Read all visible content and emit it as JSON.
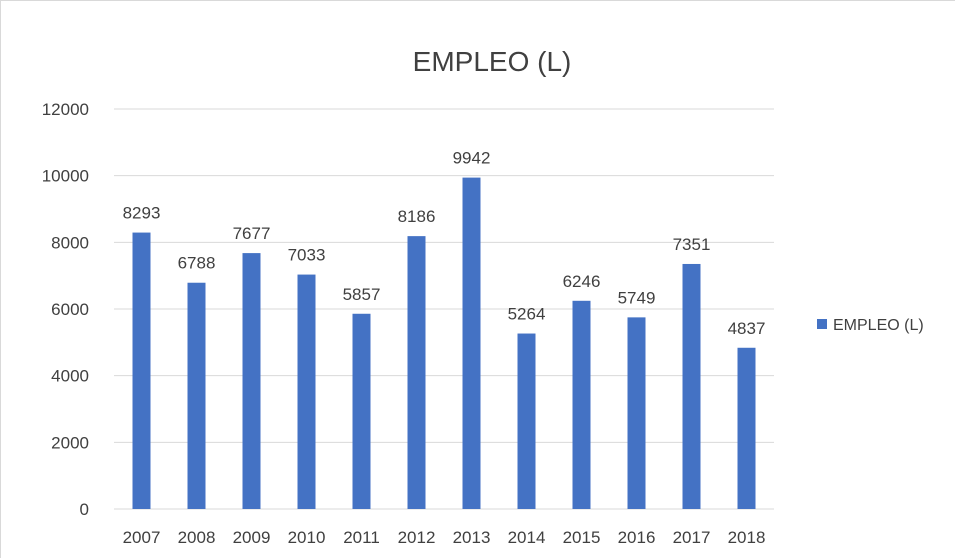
{
  "chart_data": {
    "type": "bar",
    "title": "EMPLEO (L)",
    "xlabel": "",
    "ylabel": "",
    "categories": [
      "2007",
      "2008",
      "2009",
      "2010",
      "2011",
      "2012",
      "2013",
      "2014",
      "2015",
      "2016",
      "2017",
      "2018"
    ],
    "series": [
      {
        "name": "EMPLEO (L)",
        "values": [
          8293,
          6788,
          7677,
          7033,
          5857,
          8186,
          9942,
          5264,
          6246,
          5749,
          7351,
          4837
        ],
        "color": "#4472c4"
      }
    ],
    "ylim": [
      0,
      12000
    ],
    "yticks": [
      0,
      2000,
      4000,
      6000,
      8000,
      10000,
      12000
    ],
    "ytick_labels": [
      "0",
      "2000",
      "4000",
      "6000",
      "8000",
      "10000",
      "12000"
    ],
    "grid": true,
    "grid_color": "#d9d9d9",
    "data_labels": true,
    "legend": "right"
  }
}
